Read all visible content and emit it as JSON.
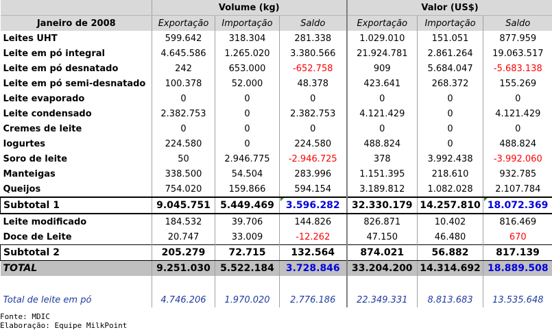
{
  "header": {
    "period": "Janeiro de 2008",
    "group_volume": "Volume (kg)",
    "group_valor": "Valor (US$)",
    "col_exp": "Exportação",
    "col_imp": "Importação",
    "col_saldo": "Saldo"
  },
  "rows": [
    {
      "label": "Leites UHT",
      "v_exp": "599.642",
      "v_imp": "318.304",
      "v_saldo": "281.338",
      "$_exp": "1.029.010",
      "$_imp": "151.051",
      "$_saldo": "877.959"
    },
    {
      "label": "Leite em pó integral",
      "v_exp": "4.645.586",
      "v_imp": "1.265.020",
      "v_saldo": "3.380.566",
      "$_exp": "21.924.781",
      "$_imp": "2.861.264",
      "$_saldo": "19.063.517"
    },
    {
      "label": "Leite em pó desnatado",
      "v_exp": "242",
      "v_imp": "653.000",
      "v_saldo": "-652.758",
      "$_exp": "909",
      "$_imp": "5.684.047",
      "$_saldo": "-5.683.138"
    },
    {
      "label": "Leite em pó semi-desnatado",
      "v_exp": "100.378",
      "v_imp": "52.000",
      "v_saldo": "48.378",
      "$_exp": "423.641",
      "$_imp": "268.372",
      "$_saldo": "155.269"
    },
    {
      "label": "Leite evaporado",
      "v_exp": "0",
      "v_imp": "0",
      "v_saldo": "0",
      "$_exp": "0",
      "$_imp": "0",
      "$_saldo": "0"
    },
    {
      "label": "Leite condensado",
      "v_exp": "2.382.753",
      "v_imp": "0",
      "v_saldo": "2.382.753",
      "$_exp": "4.121.429",
      "$_imp": "0",
      "$_saldo": "4.121.429"
    },
    {
      "label": "Cremes de leite",
      "v_exp": "0",
      "v_imp": "0",
      "v_saldo": "0",
      "$_exp": "0",
      "$_imp": "0",
      "$_saldo": "0"
    },
    {
      "label": "Iogurtes",
      "v_exp": "224.580",
      "v_imp": "0",
      "v_saldo": "224.580",
      "$_exp": "488.824",
      "$_imp": "0",
      "$_saldo": "488.824"
    },
    {
      "label": "Soro de leite",
      "v_exp": "50",
      "v_imp": "2.946.775",
      "v_saldo": "-2.946.725",
      "$_exp": "378",
      "$_imp": "3.992.438",
      "$_saldo": "-3.992.060"
    },
    {
      "label": "Manteigas",
      "v_exp": "338.500",
      "v_imp": "54.504",
      "v_saldo": "283.996",
      "$_exp": "1.151.395",
      "$_imp": "218.610",
      "$_saldo": "932.785"
    },
    {
      "label": "Queijos",
      "v_exp": "754.020",
      "v_imp": "159.866",
      "v_saldo": "594.154",
      "$_exp": "3.189.812",
      "$_imp": "1.082.028",
      "$_saldo": "2.107.784"
    }
  ],
  "subtotal1": {
    "label": "Subtotal 1",
    "v_exp": "9.045.751",
    "v_imp": "5.449.469",
    "v_saldo": "3.596.282",
    "$_exp": "32.330.179",
    "$_imp": "14.257.810",
    "$_saldo": "18.072.369"
  },
  "rows2": [
    {
      "label": "Leite modificado",
      "v_exp": "184.532",
      "v_imp": "39.706",
      "v_saldo": "144.826",
      "$_exp": "826.871",
      "$_imp": "10.402",
      "$_saldo": "816.469"
    },
    {
      "label": "Doce de Leite",
      "v_exp": "20.747",
      "v_imp": "33.009",
      "v_saldo": "-12.262",
      "$_exp": "47.150",
      "$_imp": "46.480",
      "$_saldo": "670"
    }
  ],
  "subtotal2": {
    "label": "Subtotal 2",
    "v_exp": "205.279",
    "v_imp": "72.715",
    "v_saldo": "132.564",
    "$_exp": "874.021",
    "$_imp": "56.882",
    "$_saldo": "817.139"
  },
  "total": {
    "label": "TOTAL",
    "v_exp": "9.251.030",
    "v_imp": "5.522.184",
    "v_saldo": "3.728.846",
    "$_exp": "33.204.200",
    "$_imp": "14.314.692",
    "$_saldo": "18.889.508"
  },
  "powder_total": {
    "label": "Total de leite em pó",
    "v_exp": "4.746.206",
    "v_imp": "1.970.020",
    "v_saldo": "2.776.186",
    "$_exp": "22.349.331",
    "$_imp": "8.813.683",
    "$_saldo": "13.535.648"
  },
  "footer": {
    "source": "Fonte: MDIC",
    "elaboration": "Elaboração: Equipe MilkPoint"
  },
  "colors": {
    "negative": "#ff0000",
    "highlight_blue": "#0000e0",
    "powder_blue": "#1f3aa0",
    "header_grey": "#d9d9d9",
    "total_grey": "#c0c0c0"
  }
}
